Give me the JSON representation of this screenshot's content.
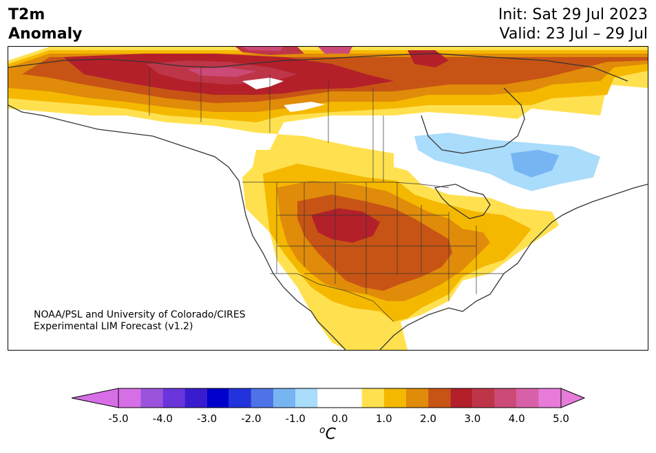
{
  "header": {
    "title_line1": "T2m",
    "title_line2": "Anomaly",
    "init_label": "Init: Sat 29 Jul 2023",
    "valid_label": "Valid: 23 Jul – 29 Jul"
  },
  "map": {
    "credit_line1": "NOAA/PSL and University of Colorado/CIRES",
    "credit_line2": "Experimental LIM Forecast (v1.2)",
    "region": "North America",
    "land_color": "#ffffff",
    "border_color": "#333333"
  },
  "colorbar": {
    "units_base": "C",
    "units_sup": "o",
    "extend": "both",
    "tick_labels": [
      "-5.0",
      "-4.0",
      "-3.0",
      "-2.0",
      "-1.0",
      "0.0",
      "1.0",
      "2.0",
      "3.0",
      "4.0",
      "5.0"
    ],
    "levels": [
      -5.0,
      -4.5,
      -4.0,
      -3.5,
      -3.0,
      -2.5,
      -2.0,
      -1.5,
      -1.0,
      -0.5,
      0.5,
      1.0,
      1.5,
      2.0,
      2.5,
      3.0,
      3.5,
      4.0,
      4.5,
      5.0
    ],
    "colors": [
      "#d66fe6",
      "#9b52dd",
      "#6a35db",
      "#3a1cd0",
      "#0000cc",
      "#2233dd",
      "#4d73e6",
      "#76b4f2",
      "#aadcfb",
      "#ffffff",
      "#ffe150",
      "#f5b800",
      "#e08b0a",
      "#c75414",
      "#b3202a",
      "#bf3548",
      "#cc4a78",
      "#d860a8",
      "#e67bd9"
    ],
    "under_color": "#d66fe6",
    "over_color": "#e67bd9"
  }
}
